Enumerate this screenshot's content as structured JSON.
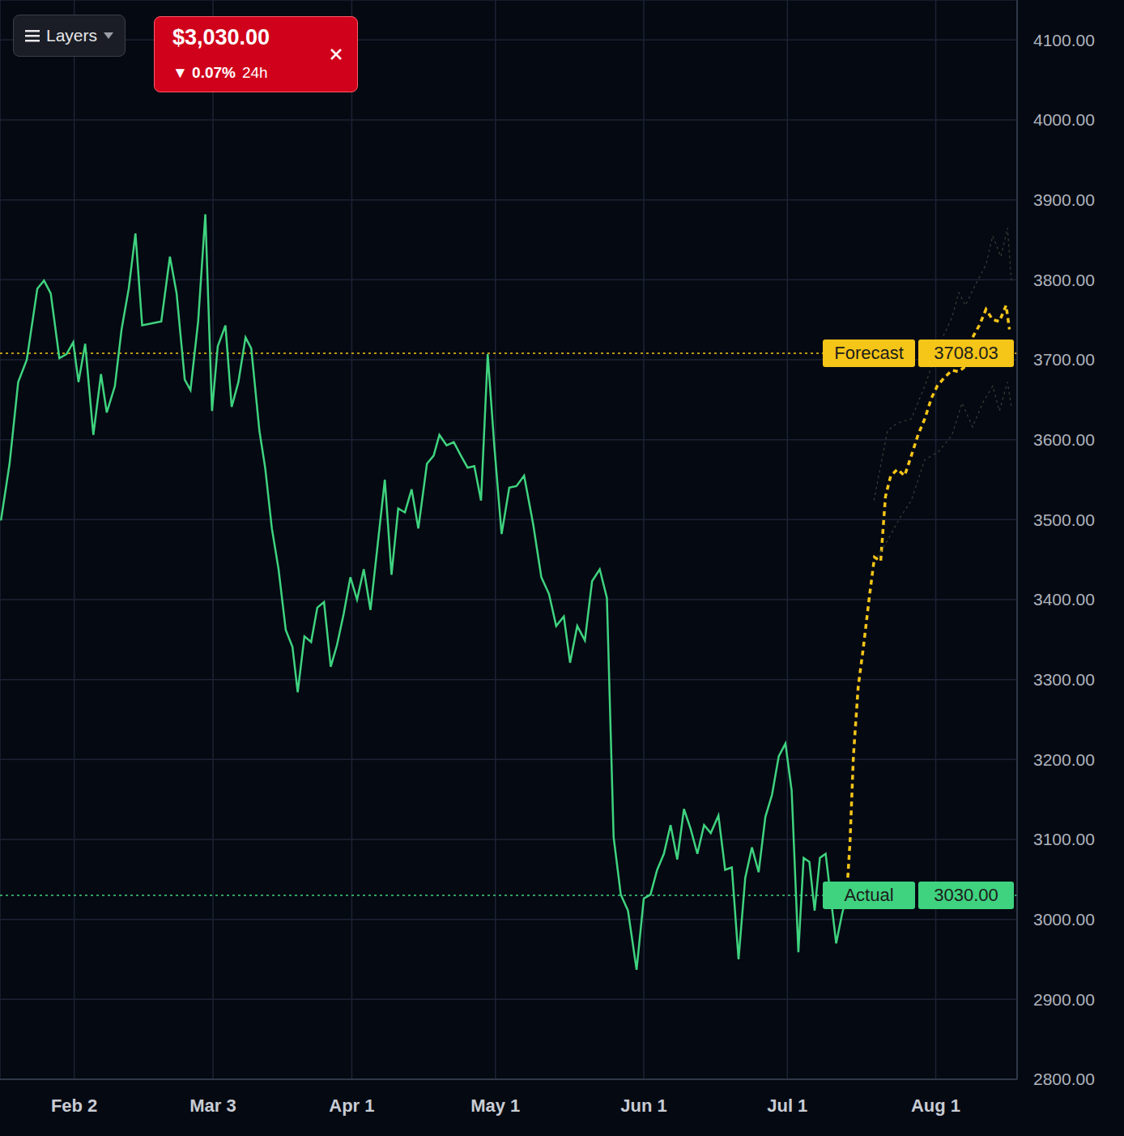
{
  "chart_data": {
    "type": "line",
    "grid": true,
    "tick_labels": true,
    "xlim": [
      17.5,
      230
    ],
    "xticks": [
      {
        "value": 33,
        "label": "Feb 2"
      },
      {
        "value": 62,
        "label": "Mar 3"
      },
      {
        "value": 91,
        "label": "Apr 1"
      },
      {
        "value": 121,
        "label": "May 1"
      },
      {
        "value": 152,
        "label": "Jun 1"
      },
      {
        "value": 182,
        "label": "Jul 1"
      },
      {
        "value": 213,
        "label": "Aug 1"
      }
    ],
    "ylim": [
      2800,
      4150
    ],
    "yticks": [
      {
        "value": 2800,
        "label": "2800.00"
      },
      {
        "value": 2900,
        "label": "2900.00"
      },
      {
        "value": 3000,
        "label": "3000.00"
      },
      {
        "value": 3100,
        "label": "3100.00"
      },
      {
        "value": 3200,
        "label": "3200.00"
      },
      {
        "value": 3300,
        "label": "3300.00"
      },
      {
        "value": 3400,
        "label": "3400.00"
      },
      {
        "value": 3500,
        "label": "3500.00"
      },
      {
        "value": 3600,
        "label": "3600.00"
      },
      {
        "value": 3700,
        "label": "3700.00"
      },
      {
        "value": 3800,
        "label": "3800.00"
      },
      {
        "value": 3900,
        "label": "3900.00"
      },
      {
        "value": 4000,
        "label": "4000.00"
      },
      {
        "value": 4100,
        "label": "4100.00"
      }
    ],
    "series": [
      {
        "color": "#3fd37f",
        "line_style": "solid",
        "x": [
          17.7,
          19.5,
          21.3,
          23.1,
          25.3,
          26.7,
          28.1,
          29.9,
          31.4,
          32.8,
          33.9,
          35.3,
          37.0,
          38.6,
          39.8,
          41.5,
          42.9,
          44.4,
          45.8,
          47.2,
          51.2,
          53.0,
          54.4,
          56.1,
          57.3,
          58.9,
          60.4,
          61.8,
          63.0,
          64.6,
          65.9,
          67.3,
          68.8,
          70.0,
          71.7,
          72.9,
          74.3,
          75.7,
          77.2,
          78.6,
          79.7,
          81.1,
          82.5,
          83.8,
          85.2,
          86.6,
          87.9,
          89.3,
          90.7,
          92.1,
          93.5,
          94.9,
          96.3,
          97.9,
          99.3,
          100.7,
          102.1,
          103.5,
          104.9,
          106.7,
          108.1,
          109.3,
          110.8,
          112.3,
          113.8,
          115.2,
          116.6,
          118.0,
          119.4,
          120.8,
          122.3,
          123.9,
          125.4,
          127.0,
          128.9,
          130.6,
          132.2,
          133.7,
          135.3,
          136.6,
          138.1,
          139.7,
          141.2,
          142.8,
          144.3,
          145.7,
          147.2,
          148.7,
          150.5,
          152.0,
          153.4,
          154.8,
          156.2,
          157.6,
          159.0,
          160.4,
          161.8,
          163.2,
          164.6,
          166.0,
          167.6,
          169.0,
          170.4,
          171.8,
          173.2,
          174.6,
          176.0,
          177.4,
          178.8,
          180.2,
          181.6,
          182.9,
          184.3,
          185.4,
          186.6,
          187.7,
          188.8,
          190.0,
          191.1,
          192.2,
          193.4,
          194.4
        ],
        "values": [
          3499,
          3570,
          3672,
          3700,
          3789,
          3799,
          3783,
          3702,
          3707,
          3722,
          3672,
          3720,
          3606,
          3682,
          3634,
          3667,
          3738,
          3789,
          3858,
          3743,
          3748,
          3829,
          3783,
          3675,
          3662,
          3748,
          3882,
          3636,
          3717,
          3743,
          3641,
          3672,
          3728,
          3714,
          3611,
          3565,
          3489,
          3438,
          3362,
          3341,
          3284,
          3354,
          3347,
          3390,
          3397,
          3316,
          3343,
          3382,
          3428,
          3400,
          3438,
          3387,
          3463,
          3550,
          3431,
          3514,
          3509,
          3538,
          3489,
          3570,
          3580,
          3606,
          3593,
          3597,
          3580,
          3565,
          3567,
          3524,
          3707,
          3590,
          3482,
          3540,
          3542,
          3555,
          3494,
          3428,
          3407,
          3367,
          3379,
          3321,
          3367,
          3349,
          3423,
          3438,
          3402,
          3103,
          3031,
          3011,
          2937,
          3026,
          3031,
          3062,
          3082,
          3118,
          3075,
          3138,
          3113,
          3082,
          3118,
          3108,
          3130,
          3062,
          3065,
          2950,
          3052,
          3090,
          3059,
          3128,
          3156,
          3204,
          3220,
          3161,
          2959,
          3077,
          3072,
          3011,
          3077,
          3082,
          3026,
          2970,
          3006,
          3030
        ]
      },
      {
        "color": "#f5c518",
        "line_style": "dotted",
        "x": [
          194.4,
          195.1,
          195.8,
          196.8,
          197.9,
          199.1,
          200.2,
          201.5,
          202.5,
          203.6,
          205.0,
          206.5,
          207.9,
          209.3,
          210.7,
          212.1,
          213.3,
          214.7,
          216.4,
          217.8,
          219.2,
          220.7,
          222.1,
          223.5,
          224.9,
          226.3,
          227.7,
          228.4
        ],
        "values": [
          3030,
          3098,
          3204,
          3291,
          3341,
          3402,
          3453,
          3448,
          3529,
          3555,
          3563,
          3555,
          3580,
          3606,
          3626,
          3652,
          3667,
          3677,
          3687,
          3685,
          3692,
          3728,
          3743,
          3763,
          3750,
          3748,
          3768,
          3738
        ]
      },
      {
        "color": "#3a4038",
        "line_style": "dotted",
        "x": [
          200.1,
          202.9,
          205.0,
          207.9,
          210.7,
          213.6,
          216.4,
          217.8,
          219.2,
          221.3,
          223.5,
          224.9,
          226.6,
          228.0,
          228.8
        ],
        "values": [
          3524,
          3611,
          3621,
          3626,
          3667,
          3717,
          3753,
          3784,
          3768,
          3794,
          3819,
          3855,
          3829,
          3865,
          3799
        ]
      },
      {
        "color": "#3a4038",
        "line_style": "dotted",
        "x": [
          200.8,
          202.9,
          205.7,
          207.9,
          210.7,
          213.6,
          216.4,
          218.5,
          220.7,
          222.8,
          224.9,
          226.3,
          228.0,
          228.8
        ],
        "values": [
          3453,
          3474,
          3504,
          3524,
          3575,
          3585,
          3606,
          3646,
          3616,
          3646,
          3667,
          3636,
          3672,
          3641
        ]
      }
    ],
    "annotations": [
      {
        "label": "Forecast",
        "value": 3708.03,
        "value_label": "3708.03",
        "color": "#f5c518"
      },
      {
        "label": "Actual",
        "value": 3030,
        "value_label": "3030.00",
        "color": "#3fd37f"
      }
    ]
  },
  "header": {
    "button": "Layers",
    "price": "$3,030.00",
    "change": "▼ 0.07%",
    "period": "24h"
  }
}
